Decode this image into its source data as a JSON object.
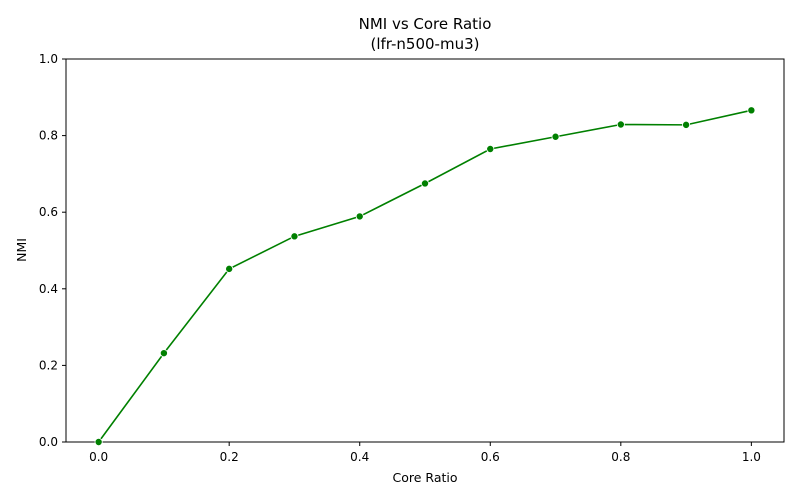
{
  "chart_data": {
    "type": "line",
    "title": "NMI vs Core Ratio",
    "subtitle": "(lfr-n500-mu3)",
    "xlabel": "Core Ratio",
    "ylabel": "NMI",
    "xlim": [
      -0.05,
      1.05
    ],
    "ylim": [
      0.0,
      1.0
    ],
    "xticks": [
      0.0,
      0.2,
      0.4,
      0.6,
      0.8,
      1.0
    ],
    "xtick_labels": [
      "0.0",
      "0.2",
      "0.4",
      "0.6",
      "0.8",
      "1.0"
    ],
    "yticks": [
      0.0,
      0.2,
      0.4,
      0.6,
      0.8,
      1.0
    ],
    "ytick_labels": [
      "0.0",
      "0.2",
      "0.4",
      "0.6",
      "0.8",
      "1.0"
    ],
    "grid": false,
    "legend": "none",
    "series": [
      {
        "color": "#008000",
        "marker": "circle",
        "x": [
          0.0,
          0.1,
          0.2,
          0.3,
          0.4,
          0.5,
          0.6,
          0.7,
          0.8,
          0.9,
          1.0
        ],
        "y": [
          0.0,
          0.232,
          0.452,
          0.537,
          0.589,
          0.675,
          0.765,
          0.797,
          0.829,
          0.828,
          0.866
        ]
      }
    ]
  }
}
